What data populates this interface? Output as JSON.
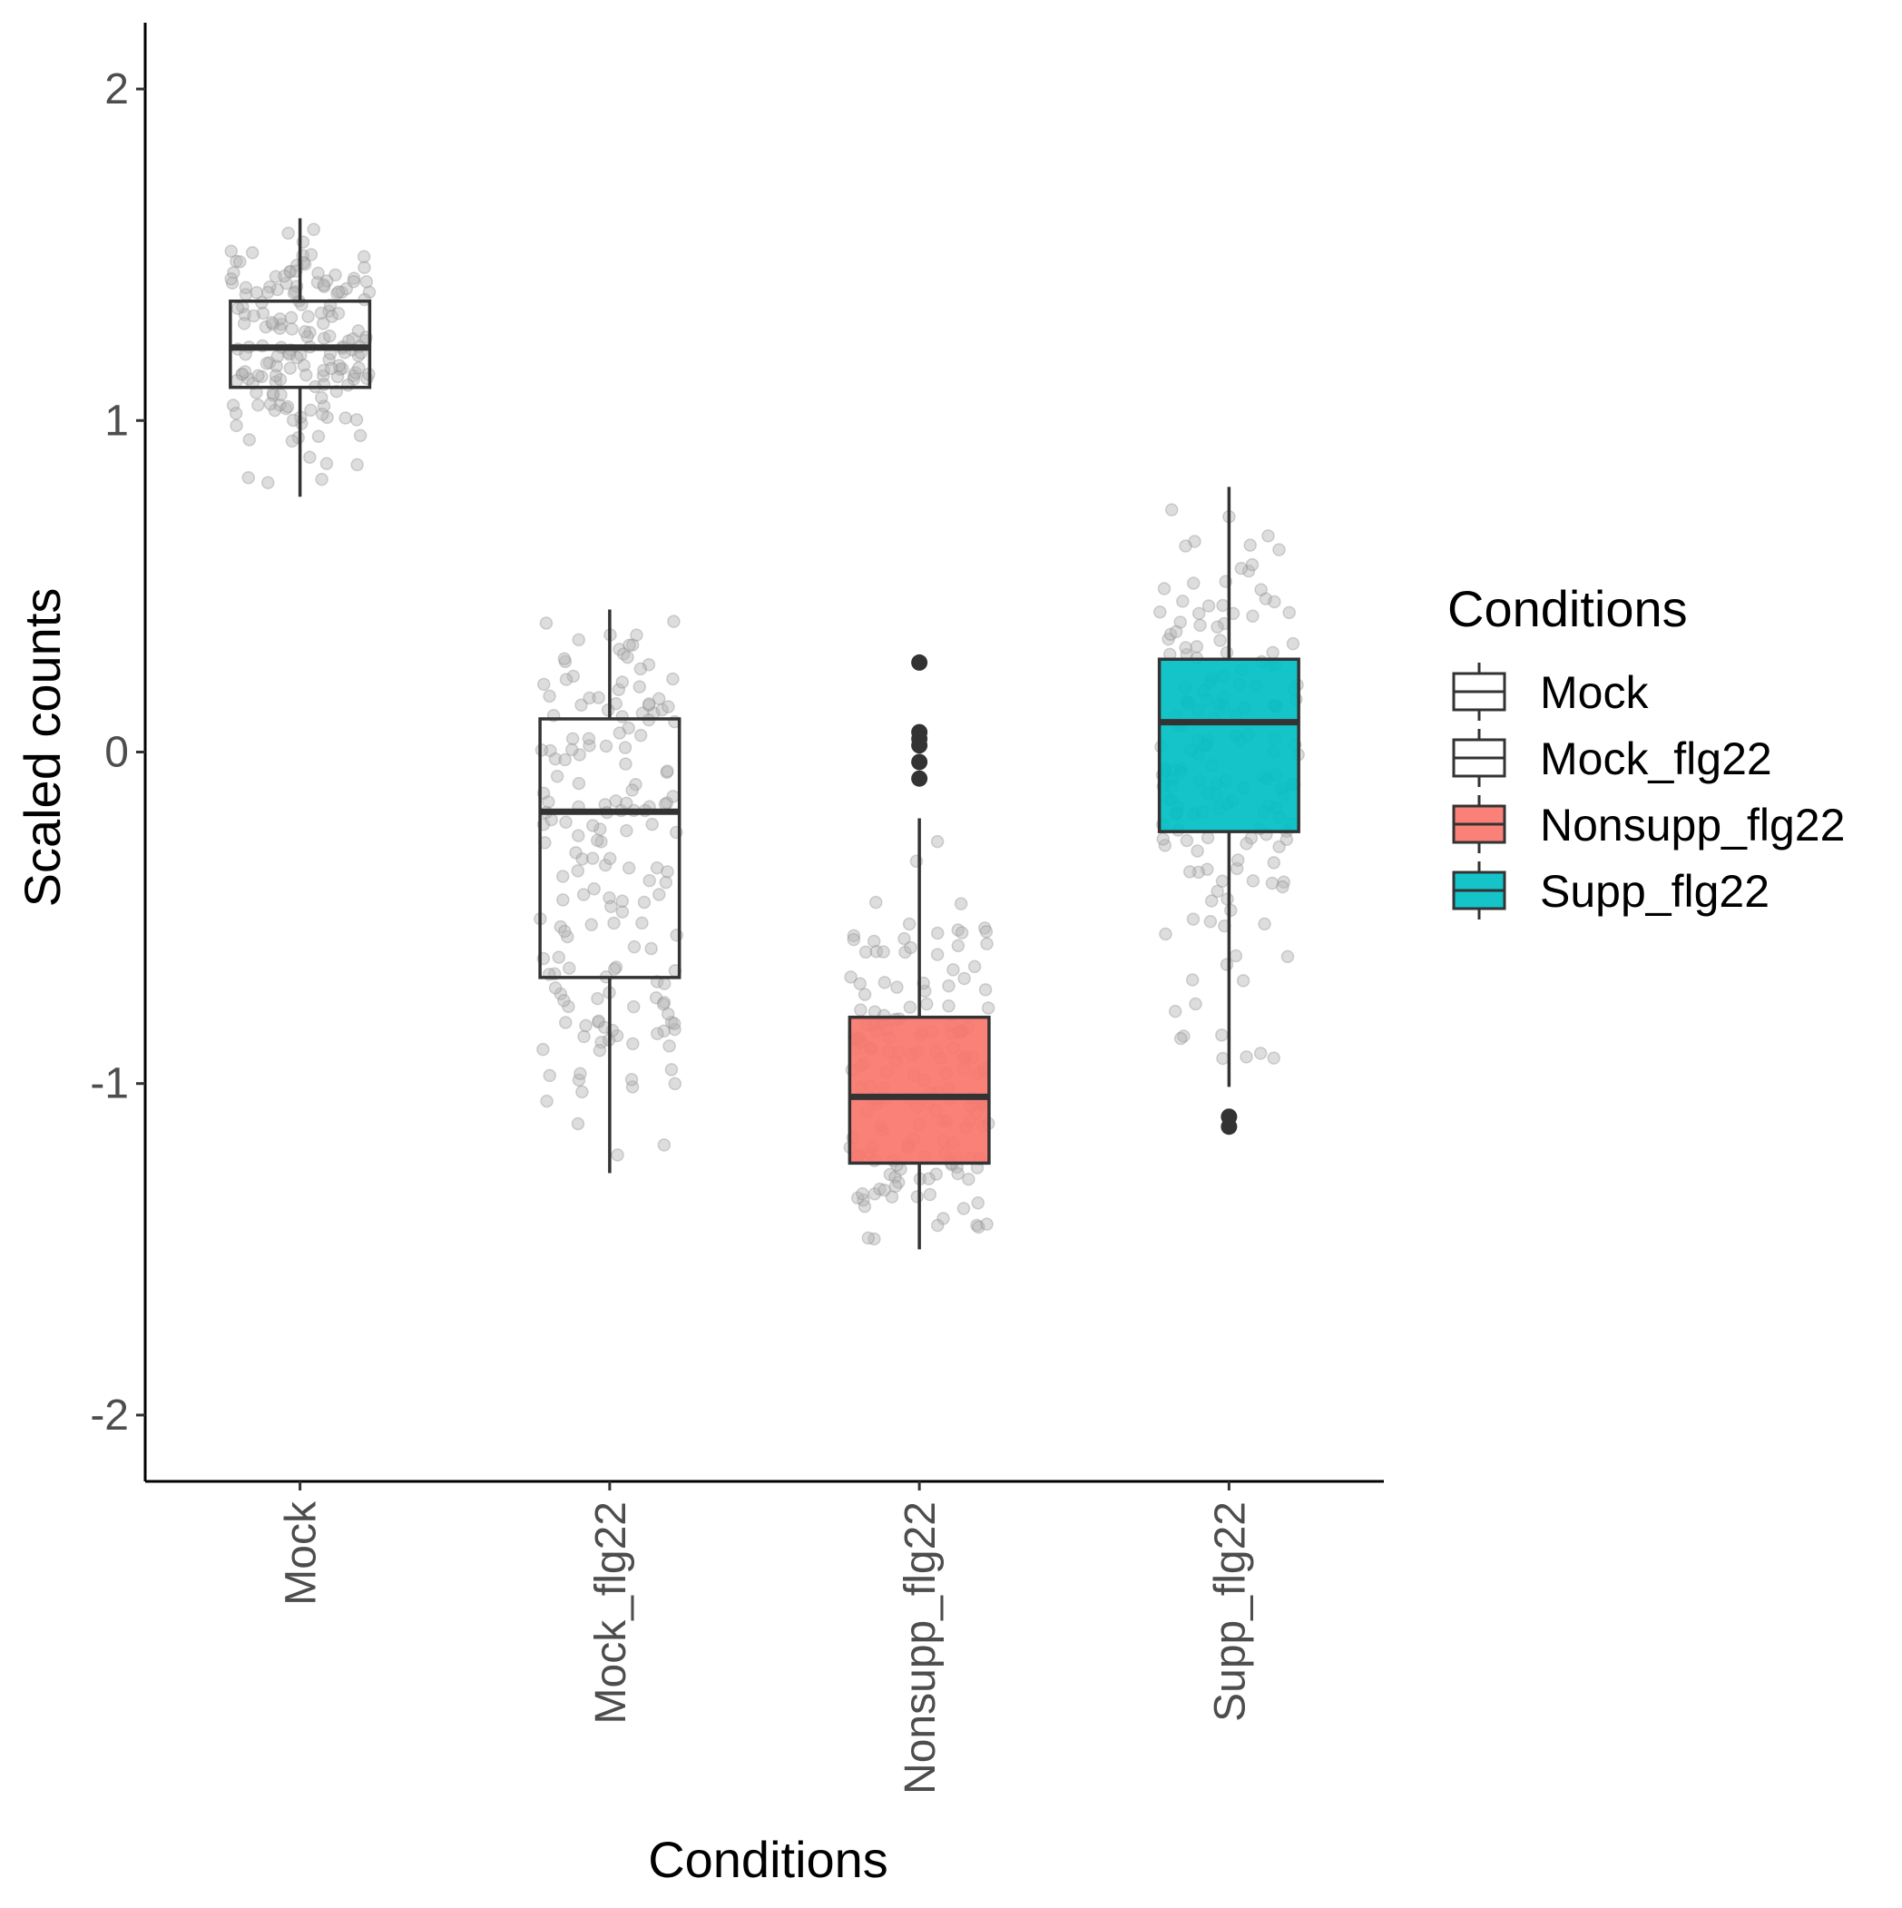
{
  "chart_data": {
    "type": "box",
    "xlabel": "Conditions",
    "ylabel": "Scaled counts",
    "ylim": [
      -2.2,
      2.2
    ],
    "yticks": [
      2,
      1,
      0,
      -1,
      -2
    ],
    "ytick_labels": [
      "2",
      "1",
      "0",
      "-1",
      "-2"
    ],
    "categories": [
      "Mock",
      "Mock_flg22",
      "Nonsupp_flg22",
      "Supp_flg22"
    ],
    "x_tick_labels_rotated": true,
    "boxes": [
      {
        "category": "Mock",
        "lower_whisker": 0.77,
        "q1": 1.1,
        "median": 1.22,
        "q3": 1.36,
        "upper_whisker": 1.61,
        "outliers": [],
        "fill": "#ffffff",
        "jitter_min": 0.77,
        "jitter_max": 1.61
      },
      {
        "category": "Mock_flg22",
        "lower_whisker": -1.27,
        "q1": -0.68,
        "median": -0.18,
        "q3": 0.1,
        "upper_whisker": 0.43,
        "outliers": [],
        "fill": "#ffffff",
        "jitter_min": -1.27,
        "jitter_max": 0.43
      },
      {
        "category": "Nonsupp_flg22",
        "lower_whisker": -1.5,
        "q1": -1.24,
        "median": -1.04,
        "q3": -0.8,
        "upper_whisker": -0.2,
        "outliers": [
          0.27,
          0.06,
          0.04,
          0.02,
          -0.03,
          -0.08
        ],
        "fill": "#F8766D",
        "jitter_min": -1.5,
        "jitter_max": -0.22
      },
      {
        "category": "Supp_flg22",
        "lower_whisker": -1.01,
        "q1": -0.24,
        "median": 0.09,
        "q3": 0.28,
        "upper_whisker": 0.8,
        "outliers": [
          -1.1,
          -1.13
        ],
        "fill": "#00BFC4",
        "jitter_min": -1.01,
        "jitter_max": 0.8
      }
    ],
    "legend": {
      "title": "Conditions",
      "position": "right",
      "entries": [
        {
          "label": "Mock",
          "fill": "#ffffff"
        },
        {
          "label": "Mock_flg22",
          "fill": "#ffffff"
        },
        {
          "label": "Nonsupp_flg22",
          "fill": "#F8766D"
        },
        {
          "label": "Supp_flg22",
          "fill": "#00BFC4"
        }
      ]
    },
    "grid": false,
    "colors": {
      "box_line": "#333333",
      "jitter_point": "#b3b3b3",
      "outlier": "#333333",
      "axis": "#000000"
    }
  }
}
